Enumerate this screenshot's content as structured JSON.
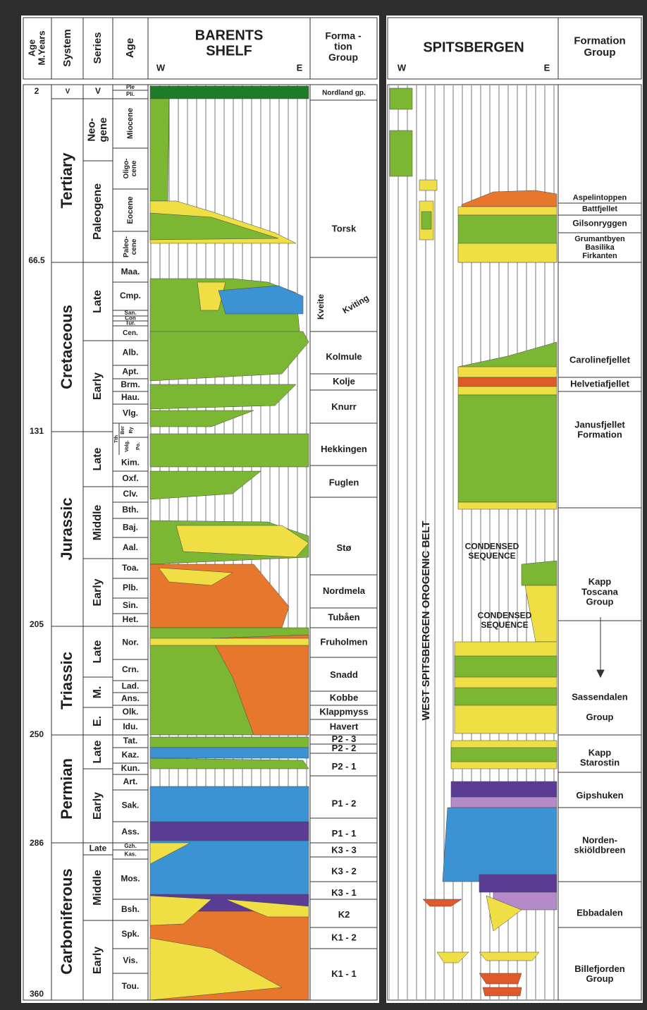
{
  "header": {
    "age_myears": [
      "Age",
      "M.Years"
    ],
    "system": "System",
    "series": "Series",
    "age": "Age",
    "barents_title": [
      "BARENTS",
      "SHELF"
    ],
    "barents_w": "W",
    "barents_e": "E",
    "formation_group_left": [
      "Forma -",
      "tion",
      "Group"
    ],
    "spitsbergen_title": "SPITSBERGEN",
    "spitsbergen_w": "W",
    "spitsbergen_e": "E",
    "formation_group_right": [
      "Formation",
      "Group"
    ]
  },
  "ages": [
    "2",
    "66.5",
    "131",
    "205",
    "250",
    "286",
    "360"
  ],
  "systems": [
    "V",
    "Tertiary",
    "Cretaceous",
    "Jurassic",
    "Triassic",
    "Permian",
    "Carboniferous"
  ],
  "series": [
    "V",
    [
      "Neo-",
      "gene"
    ],
    "Paleogene",
    "Late",
    "Early",
    "Late",
    "Middle",
    "Early",
    "Late",
    "M.",
    "E.",
    "Late",
    "Early",
    "Late",
    "Middle",
    "Early"
  ],
  "stages": [
    "Ple",
    "Pli.",
    "Miocene",
    [
      "Oligo-",
      "cene"
    ],
    "Eocene",
    [
      "Paleo-",
      "cene"
    ],
    "Maa.",
    "Cmp.",
    "San.",
    "Con",
    "Tur.",
    "Cen.",
    "Alb.",
    "Apt.",
    "Brm.",
    "Hau.",
    "Vlg.",
    "Tth",
    "Ber",
    "Ry",
    "Volg.",
    "Po.",
    "Kim.",
    "Oxf.",
    "Clv.",
    "Bth.",
    "Baj.",
    "Aal.",
    "Toa.",
    "Plb.",
    "Sin.",
    "Het.",
    "Nor.",
    "Crn.",
    "Lad.",
    "Ans.",
    "Olk.",
    "Idu.",
    "Tat.",
    "Kaz.",
    "Kun.",
    "Art.",
    "Sak.",
    "Ass.",
    "Gzh.",
    "Kas.",
    "Mos.",
    "Bsh.",
    "Spk.",
    "Vis.",
    "Tou."
  ],
  "formations_barents": [
    "Nordland gp.",
    "Torsk",
    "Kveite",
    "Kviting",
    "Kolmule",
    "Kolje",
    "Knurr",
    "Hekkingen",
    "Fuglen",
    "Stø",
    "Nordmela",
    "Tubåen",
    "Fruholmen",
    "Snadd",
    "Kobbe",
    "Klappmyss",
    "Havert",
    "P2 - 3",
    "P2 - 2",
    "P2 - 1",
    "P1 - 2",
    "P1 - 1",
    "K3 - 3",
    "K3 - 2",
    "K3 - 1",
    "K2",
    "K1 - 2",
    "K1 - 1"
  ],
  "spitsbergen_labels": {
    "orogenic_belt": "WEST SPITSBERGEN OROGENIC BELT",
    "condensed_1": [
      "CONDENSED",
      "SEQUENCE"
    ],
    "condensed_2": [
      "CONDENSED",
      "SEQUENCE"
    ]
  },
  "formations_spitsbergen": [
    "Aspelintoppen",
    "Battfjellet",
    "Gilsonryggen",
    [
      "Grumantbyen",
      "Basilika",
      "Firkanten"
    ],
    "Carolinefjellet",
    "Helvetiafjellet",
    [
      "Janusfjellet",
      "Formation"
    ],
    [
      "Kapp",
      "Toscana",
      "Group"
    ],
    [
      "Sassendalen",
      "",
      "Group"
    ],
    [
      "Kapp",
      "Starostin"
    ],
    "Gipshuken",
    [
      "Norden-",
      "skiöldbreen"
    ],
    "Ebbadalen",
    [
      "Billefjorden",
      "Group"
    ]
  ]
}
